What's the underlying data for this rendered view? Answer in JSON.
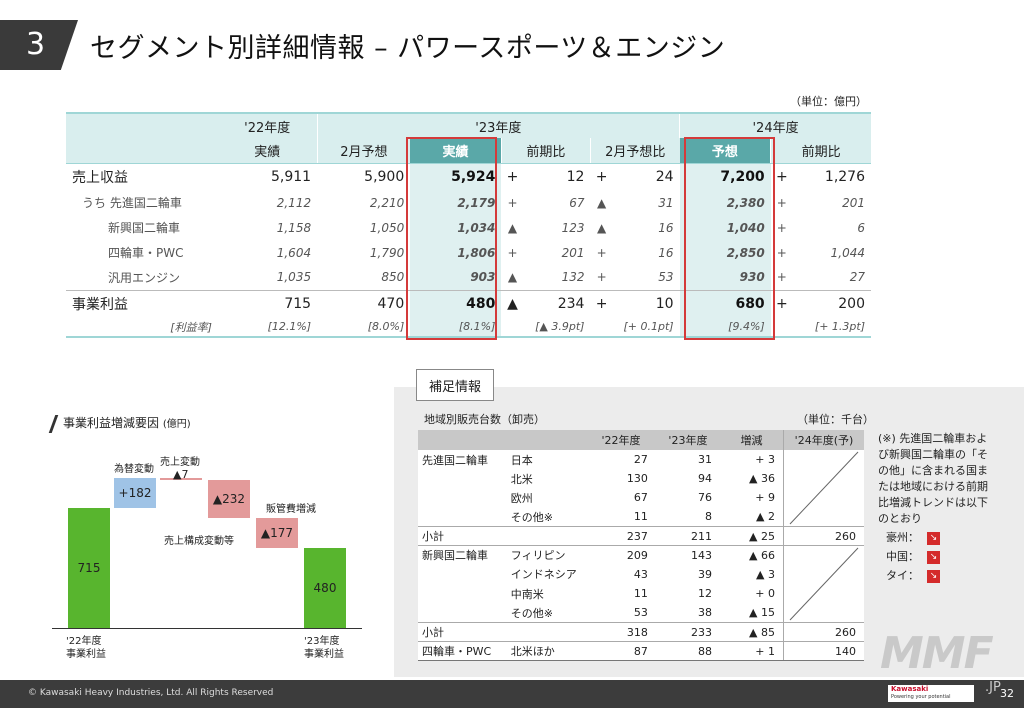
{
  "title": {
    "number": "3",
    "text": "セグメント別詳細情報 – パワースポーツ＆エンジン"
  },
  "main_unit": "（単位：億円）",
  "main_table": {
    "header1": {
      "fy22": "'22年度",
      "fy23": "'23年度",
      "fy24": "'24年度"
    },
    "header2": {
      "fy22": "実績",
      "feb_fcst": "2月予想",
      "actual": "実績",
      "yoy": "前期比",
      "vs_feb": "2月予想比",
      "forecast": "予想",
      "yoy24": "前期比"
    },
    "rows": [
      {
        "label": "売上収益",
        "fy22": "5,911",
        "feb": "5,900",
        "act": "5,924",
        "yoy_s": "+",
        "yoy": "12",
        "vf_s": "+",
        "vf": "24",
        "fc": "7,200",
        "y24_s": "+",
        "y24": "1,276"
      },
      {
        "label": "うち 先進国二輪車",
        "fy22": "2,112",
        "feb": "2,210",
        "act": "2,179",
        "yoy_s": "+",
        "yoy": "67",
        "vf_s": "▲",
        "vf": "31",
        "fc": "2,380",
        "y24_s": "+",
        "y24": "201"
      },
      {
        "label": "新興国二輪車",
        "fy22": "1,158",
        "feb": "1,050",
        "act": "1,034",
        "yoy_s": "▲",
        "yoy": "123",
        "vf_s": "▲",
        "vf": "16",
        "fc": "1,040",
        "y24_s": "+",
        "y24": "6"
      },
      {
        "label": "四輪車・PWC",
        "fy22": "1,604",
        "feb": "1,790",
        "act": "1,806",
        "yoy_s": "+",
        "yoy": "201",
        "vf_s": "+",
        "vf": "16",
        "fc": "2,850",
        "y24_s": "+",
        "y24": "1,044"
      },
      {
        "label": "汎用エンジン",
        "fy22": "1,035",
        "feb": "850",
        "act": "903",
        "yoy_s": "▲",
        "yoy": "132",
        "vf_s": "+",
        "vf": "53",
        "fc": "930",
        "y24_s": "+",
        "y24": "27"
      },
      {
        "label": "事業利益",
        "fy22": "715",
        "feb": "470",
        "act": "480",
        "yoy_s": "▲",
        "yoy": "234",
        "vf_s": "+",
        "vf": "10",
        "fc": "680",
        "y24_s": "+",
        "y24": "200"
      }
    ],
    "rate": {
      "label": "[利益率]",
      "fy22": "[12.1%]",
      "feb": "[8.0%]",
      "act": "[8.1%]",
      "yoy": "[▲ 3.9pt]",
      "vf": "[+ 0.1pt]",
      "fc": "[9.4%]",
      "y24": "[+ 1.3pt]"
    }
  },
  "waterfall": {
    "title": "事業利益増減要因",
    "unit": "(億円)",
    "labels": {
      "fx": "為替変動",
      "sales": "売上変動",
      "mix": "売上構成変動等",
      "sga": "販管費増減",
      "start": "'22年度\n事業利益",
      "end": "'23年度\n事業利益"
    },
    "values": {
      "start": "715",
      "fx": "+182",
      "sales": "▲7",
      "mix": "▲232",
      "sga": "▲177",
      "end": "480"
    },
    "colors": {
      "green": "#58b52e",
      "blue": "#9fc3e6",
      "red": "#e39a9a"
    }
  },
  "supplement": {
    "tab": "補足情報",
    "title": "地域別販売台数（卸売）",
    "unit": "（単位：千台）",
    "headers": [
      "'22年度",
      "'23年度",
      "増減",
      "'24年度(予)"
    ],
    "rows": [
      {
        "cat": "先進国二輪車",
        "region": "日本",
        "a": "27",
        "b": "31",
        "d": "+ 3",
        "f": ""
      },
      {
        "cat": "",
        "region": "北米",
        "a": "130",
        "b": "94",
        "d": "▲ 36",
        "f": ""
      },
      {
        "cat": "",
        "region": "欧州",
        "a": "67",
        "b": "76",
        "d": "+ 9",
        "f": ""
      },
      {
        "cat": "",
        "region": "その他※",
        "a": "11",
        "b": "8",
        "d": "▲ 2",
        "f": ""
      },
      {
        "cat": "小計",
        "region": "",
        "a": "237",
        "b": "211",
        "d": "▲ 25",
        "f": "260"
      },
      {
        "cat": "新興国二輪車",
        "region": "フィリピン",
        "a": "209",
        "b": "143",
        "d": "▲ 66",
        "f": ""
      },
      {
        "cat": "",
        "region": "インドネシア",
        "a": "43",
        "b": "39",
        "d": "▲ 3",
        "f": ""
      },
      {
        "cat": "",
        "region": "中南米",
        "a": "11",
        "b": "12",
        "d": "+ 0",
        "f": ""
      },
      {
        "cat": "",
        "region": "その他※",
        "a": "53",
        "b": "38",
        "d": "▲ 15",
        "f": ""
      },
      {
        "cat": "小計",
        "region": "",
        "a": "318",
        "b": "233",
        "d": "▲ 85",
        "f": "260"
      },
      {
        "cat": "四輪車・PWC",
        "region": "北米ほか",
        "a": "87",
        "b": "88",
        "d": "+ 1",
        "f": "140"
      }
    ],
    "note": "(※) 先進国二輪車および新興国二輪車の「その他」に含まれる国または地域における前期比増減トレンドは以下のとおり",
    "trends": [
      {
        "country": "豪州：",
        "arrow": "↘"
      },
      {
        "country": "中国：",
        "arrow": "↘"
      },
      {
        "country": "タイ：",
        "arrow": "↘"
      }
    ]
  },
  "footer": {
    "copyright": "© Kawasaki Heavy Industries, Ltd. All Rights Reserved",
    "brand": "Kawasaki",
    "tagline": "Powering your potential",
    "page": "32"
  },
  "watermark": {
    "text": "MMF",
    "suffix": ".JP"
  }
}
